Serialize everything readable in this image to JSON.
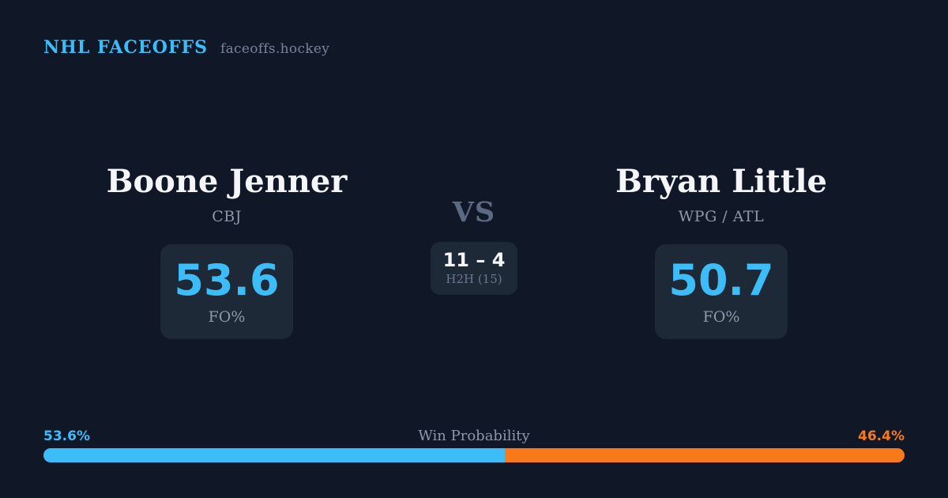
{
  "header": {
    "brand": "NHL FACEOFFS",
    "site": "faceoffs.hockey"
  },
  "matchup": {
    "vs_label": "VS",
    "h2h": {
      "record": "11 – 4",
      "label": "H2H (15)"
    },
    "player_left": {
      "name": "Boone Jenner",
      "team": "CBJ",
      "value": "53.6",
      "stat_label": "FO%"
    },
    "player_right": {
      "name": "Bryan Little",
      "team": "WPG / ATL",
      "value": "50.7",
      "stat_label": "FO%"
    }
  },
  "win_probability": {
    "title": "Win Probability",
    "left_label": "53.6%",
    "right_label": "46.4%",
    "left_value": 53.6,
    "right_value": 46.4
  },
  "colors": {
    "bg": "#101827",
    "card": "#1e2938",
    "accent-blue": "#3cbdf8",
    "accent-orange": "#f8791a",
    "text-bright": "#f3f5f9",
    "text-muted": "#8d97aa",
    "text-dim": "#5b6a82"
  }
}
